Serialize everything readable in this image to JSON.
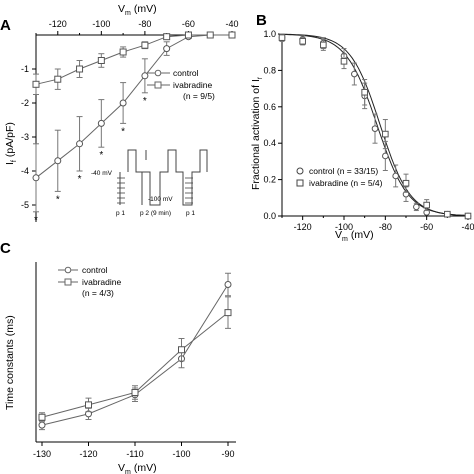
{
  "chart_data": [
    {
      "panel": "A",
      "type": "line",
      "xlabel": "V",
      "xlabel_sub": "m",
      "xlabel_unit": "(mV)",
      "ylabel": "I",
      "ylabel_sub": "f",
      "ylabel_unit": "(pA/pF)",
      "xlim": [
        -130,
        -40
      ],
      "ylim": [
        -5.5,
        0
      ],
      "xticks": [
        -120,
        -100,
        -80,
        -60,
        -40
      ],
      "yticks": [
        -1,
        -2,
        -3,
        -4,
        -5
      ],
      "x_axis_position": "top",
      "legend": {
        "position": "right",
        "note": "(n = 9/5)"
      },
      "series": [
        {
          "name": "control",
          "marker": "circle",
          "x": [
            -130,
            -120,
            -110,
            -100,
            -90,
            -80,
            -70,
            -60,
            -50,
            -40
          ],
          "y": [
            -4.2,
            -3.7,
            -3.2,
            -2.6,
            -2.0,
            -1.2,
            -0.4,
            -0.05,
            0,
            0
          ],
          "err": [
            1.0,
            0.9,
            0.8,
            0.7,
            0.6,
            0.5,
            0.2,
            0.05,
            0,
            0
          ]
        },
        {
          "name": "ivabradine",
          "marker": "square",
          "x": [
            -130,
            -120,
            -110,
            -100,
            -90,
            -80,
            -70,
            -60,
            -50,
            -40
          ],
          "y": [
            -1.45,
            -1.3,
            -1.0,
            -0.75,
            -0.5,
            -0.3,
            -0.05,
            0,
            0,
            0
          ],
          "err": [
            0.3,
            0.3,
            0.25,
            0.2,
            0.15,
            0.1,
            0.05,
            0,
            0,
            0
          ]
        }
      ],
      "significance_marks": {
        "symbol": "*",
        "x": [
          -130,
          -120,
          -110,
          -100,
          -90,
          -80
        ]
      },
      "inset": {
        "label_v1": "-40 mV",
        "label_v2": "-100 mV",
        "labels_bottom": [
          "p 1",
          "p 2 (9 min)",
          "p 1"
        ]
      }
    },
    {
      "panel": "B",
      "type": "line",
      "xlabel": "V",
      "xlabel_sub": "m",
      "xlabel_unit": "(mV)",
      "ylabel": "Fractional activation of I",
      "ylabel_sub": "f",
      "xlim": [
        -130,
        -40
      ],
      "ylim": [
        0,
        1.0
      ],
      "xticks": [
        -120,
        -100,
        -80,
        -60,
        -40
      ],
      "yticks": [
        0.0,
        0.2,
        0.4,
        0.6,
        0.8,
        1.0
      ],
      "legend": {
        "position": "bottom-left"
      },
      "series": [
        {
          "name": "control (n = 33/15)",
          "marker": "circle",
          "x": [
            -130,
            -120,
            -110,
            -100,
            -95,
            -90,
            -85,
            -80,
            -75,
            -70,
            -65,
            -60,
            -50,
            -40
          ],
          "y": [
            0.98,
            0.97,
            0.95,
            0.88,
            0.78,
            0.66,
            0.48,
            0.33,
            0.22,
            0.12,
            0.05,
            0.02,
            0.01,
            0.0
          ],
          "err": [
            0.02,
            0.02,
            0.03,
            0.04,
            0.06,
            0.07,
            0.08,
            0.08,
            0.06,
            0.04,
            0.02,
            0.01,
            0.0,
            0.0
          ]
        },
        {
          "name": "ivabradine (n = 5/4)",
          "marker": "square",
          "x": [
            -130,
            -120,
            -110,
            -100,
            -90,
            -80,
            -70,
            -60,
            -50,
            -40
          ],
          "y": [
            0.98,
            0.96,
            0.94,
            0.85,
            0.68,
            0.45,
            0.18,
            0.06,
            0.01,
            0.0
          ],
          "err": [
            0.02,
            0.02,
            0.03,
            0.04,
            0.07,
            0.08,
            0.05,
            0.03,
            0.0,
            0.0
          ]
        }
      ]
    },
    {
      "panel": "C",
      "type": "line",
      "xlabel": "V",
      "xlabel_sub": "m",
      "xlabel_unit": "(mV)",
      "ylabel": "Time constants (ms)",
      "xlim": [
        -130,
        -90
      ],
      "ylim": [
        0,
        800
      ],
      "xticks": [
        -130,
        -120,
        -110,
        -100,
        -90
      ],
      "legend": {
        "position": "top-left",
        "note": "(n = 4/3)"
      },
      "series": [
        {
          "name": "control",
          "marker": "circle",
          "x": [
            -130,
            -120,
            -110,
            -100,
            -90
          ],
          "y": [
            75,
            125,
            210,
            370,
            700
          ],
          "err": [
            20,
            25,
            30,
            40,
            50
          ]
        },
        {
          "name": "ivabradine",
          "marker": "square",
          "x": [
            -130,
            -120,
            -110,
            -100,
            -90
          ],
          "y": [
            110,
            165,
            220,
            410,
            575
          ],
          "err": [
            20,
            30,
            30,
            50,
            70
          ]
        }
      ]
    }
  ]
}
